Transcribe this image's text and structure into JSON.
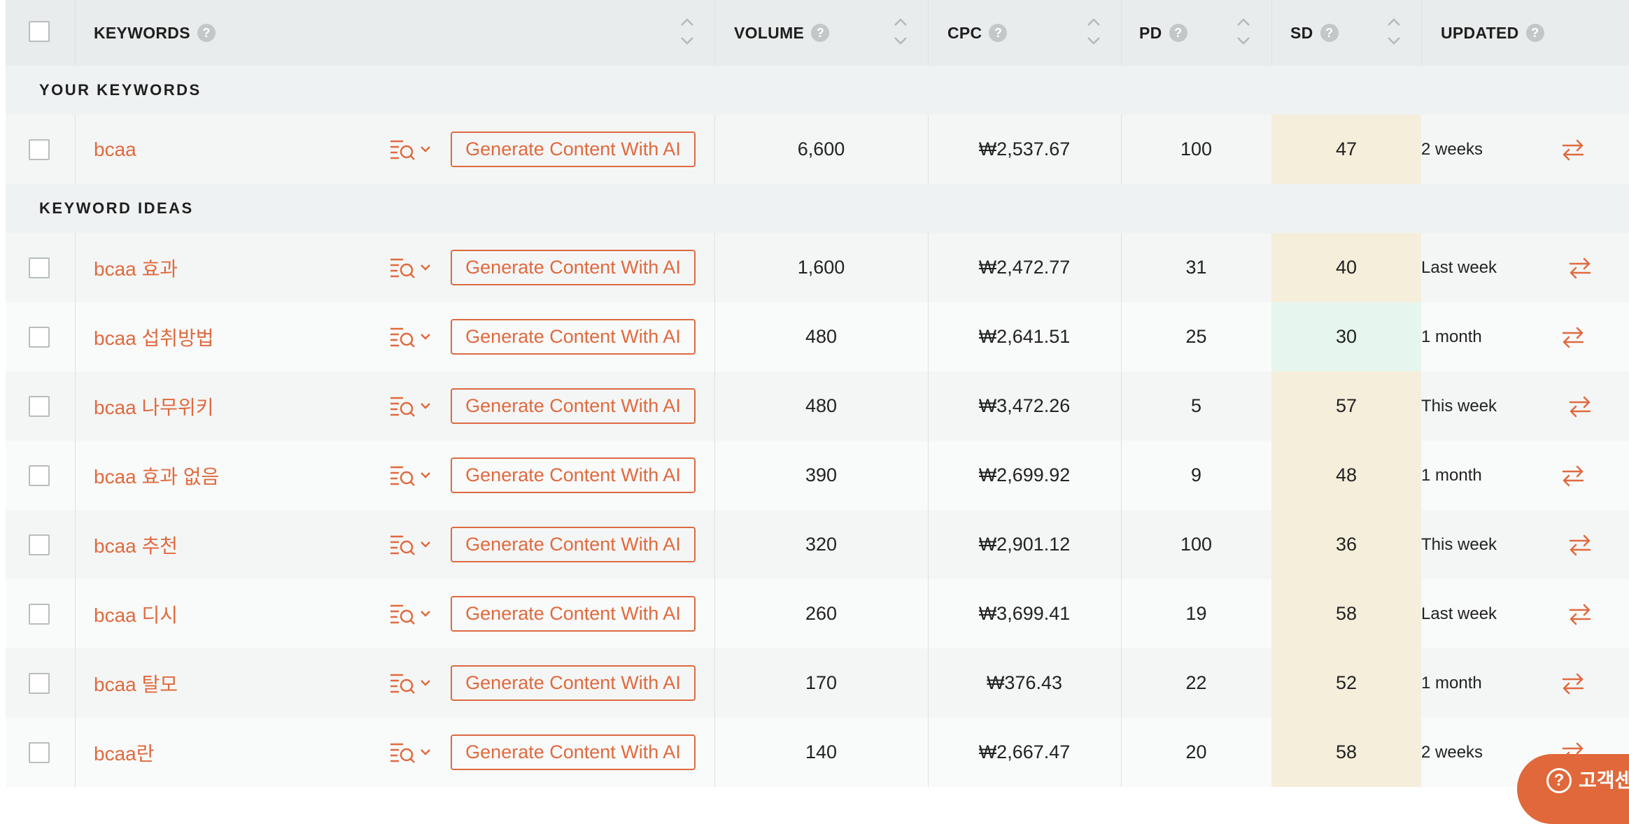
{
  "header": {
    "keywords": "KEYWORDS",
    "volume": "VOLUME",
    "cpc": "CPC",
    "pd": "PD",
    "sd": "SD",
    "updated": "UPDATED",
    "help_icon": "?"
  },
  "sections": {
    "your_keywords": "YOUR KEYWORDS",
    "keyword_ideas": "KEYWORD IDEAS"
  },
  "generate_label": "Generate Content With AI",
  "your_keywords": [
    {
      "keyword": "bcaa",
      "volume": "6,600",
      "cpc": "₩2,537.67",
      "pd": "100",
      "sd": "47",
      "updated": "2 weeks"
    }
  ],
  "keyword_ideas": [
    {
      "keyword": "bcaa 효과",
      "volume": "1,600",
      "cpc": "₩2,472.77",
      "pd": "31",
      "sd": "40",
      "updated": "Last week"
    },
    {
      "keyword": "bcaa 섭취방법",
      "volume": "480",
      "cpc": "₩2,641.51",
      "pd": "25",
      "sd": "30",
      "updated": "1 month"
    },
    {
      "keyword": "bcaa 나무위키",
      "volume": "480",
      "cpc": "₩3,472.26",
      "pd": "5",
      "sd": "57",
      "updated": "This week"
    },
    {
      "keyword": "bcaa 효과 없음",
      "volume": "390",
      "cpc": "₩2,699.92",
      "pd": "9",
      "sd": "48",
      "updated": "1 month"
    },
    {
      "keyword": "bcaa 추천",
      "volume": "320",
      "cpc": "₩2,901.12",
      "pd": "100",
      "sd": "36",
      "updated": "This week"
    },
    {
      "keyword": "bcaa 디시",
      "volume": "260",
      "cpc": "₩3,699.41",
      "pd": "19",
      "sd": "58",
      "updated": "Last week"
    },
    {
      "keyword": "bcaa 탈모",
      "volume": "170",
      "cpc": "₩376.43",
      "pd": "22",
      "sd": "52",
      "updated": "1 month"
    },
    {
      "keyword": "bcaa란",
      "volume": "140",
      "cpc": "₩2,667.47",
      "pd": "20",
      "sd": "58",
      "updated": "2 weeks"
    }
  ],
  "colors": {
    "accent": "#e06a3e",
    "sd_easy": "#e6f6ee",
    "sd_medium": "#f5eedb"
  },
  "support_button": {
    "label": "고객센터",
    "icon": "question-circle-icon"
  }
}
